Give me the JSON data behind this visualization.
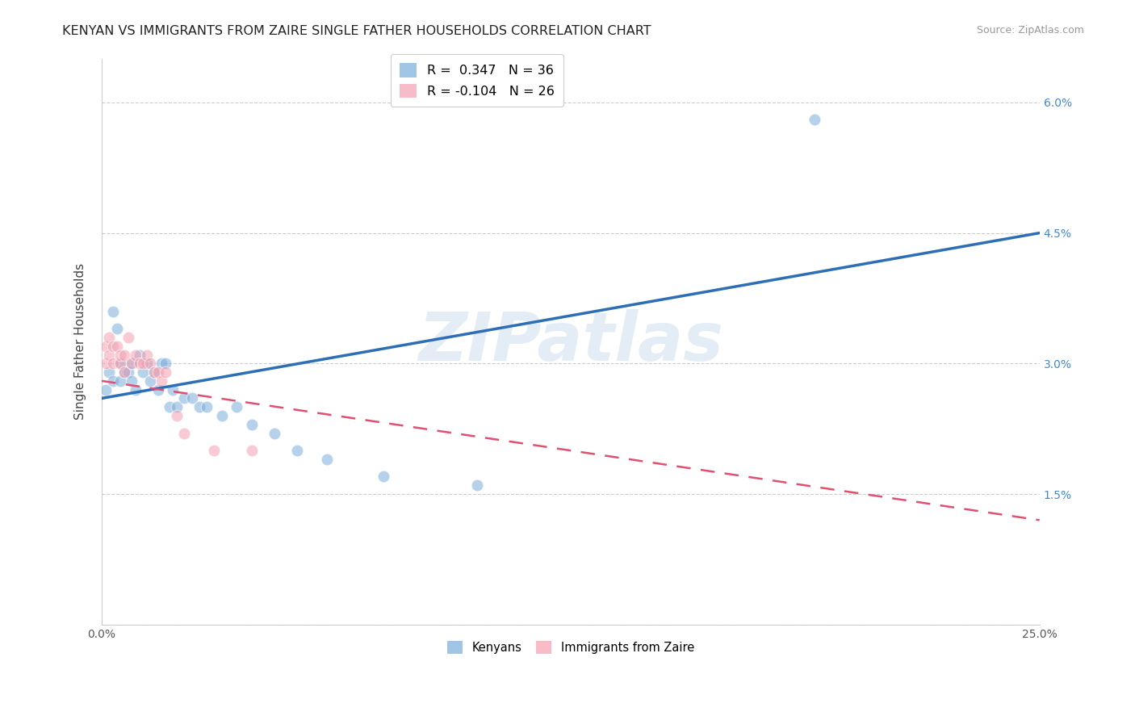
{
  "title": "KENYAN VS IMMIGRANTS FROM ZAIRE SINGLE FATHER HOUSEHOLDS CORRELATION CHART",
  "source": "Source: ZipAtlas.com",
  "ylabel": "Single Father Households",
  "xlim": [
    0.0,
    0.25
  ],
  "ylim": [
    0.0,
    0.065
  ],
  "xtick_positions": [
    0.0,
    0.05,
    0.1,
    0.15,
    0.2,
    0.25
  ],
  "xticklabels": [
    "0.0%",
    "",
    "",
    "",
    "",
    "25.0%"
  ],
  "ytick_positions": [
    0.0,
    0.015,
    0.03,
    0.045,
    0.06
  ],
  "yticklabels": [
    "",
    "1.5%",
    "3.0%",
    "4.5%",
    "6.0%"
  ],
  "legend1_label": "R =  0.347   N = 36",
  "legend2_label": "R = -0.104   N = 26",
  "kenyan_color": "#7aaddb",
  "zaire_color": "#f4a0b0",
  "kenyan_line_color": "#2d6eb5",
  "zaire_line_color": "#e05070",
  "watermark": "ZIPatlas",
  "marker_size": 110,
  "marker_alpha": 0.55,
  "kenyan_x": [
    0.001,
    0.002,
    0.003,
    0.003,
    0.004,
    0.005,
    0.005,
    0.006,
    0.007,
    0.008,
    0.008,
    0.009,
    0.01,
    0.011,
    0.012,
    0.013,
    0.014,
    0.015,
    0.016,
    0.017,
    0.018,
    0.019,
    0.02,
    0.022,
    0.024,
    0.026,
    0.028,
    0.032,
    0.036,
    0.04,
    0.046,
    0.052,
    0.06,
    0.075,
    0.1,
    0.19
  ],
  "kenyan_y": [
    0.027,
    0.029,
    0.028,
    0.036,
    0.034,
    0.03,
    0.028,
    0.029,
    0.029,
    0.03,
    0.028,
    0.027,
    0.031,
    0.029,
    0.03,
    0.028,
    0.029,
    0.027,
    0.03,
    0.03,
    0.025,
    0.027,
    0.025,
    0.026,
    0.026,
    0.025,
    0.025,
    0.024,
    0.025,
    0.023,
    0.022,
    0.02,
    0.019,
    0.017,
    0.016,
    0.058
  ],
  "zaire_x": [
    0.001,
    0.001,
    0.002,
    0.002,
    0.003,
    0.003,
    0.004,
    0.005,
    0.005,
    0.006,
    0.006,
    0.007,
    0.008,
    0.009,
    0.01,
    0.011,
    0.012,
    0.013,
    0.014,
    0.015,
    0.016,
    0.017,
    0.02,
    0.022,
    0.03,
    0.04
  ],
  "zaire_y": [
    0.03,
    0.032,
    0.031,
    0.033,
    0.03,
    0.032,
    0.032,
    0.03,
    0.031,
    0.031,
    0.029,
    0.033,
    0.03,
    0.031,
    0.03,
    0.03,
    0.031,
    0.03,
    0.029,
    0.029,
    0.028,
    0.029,
    0.024,
    0.022,
    0.02,
    0.02
  ]
}
